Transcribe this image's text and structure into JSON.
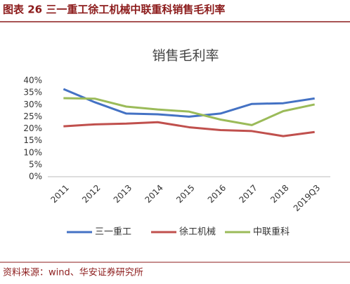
{
  "header": {
    "title": "图表 26 三一重工徐工机械中联重科销售毛利率"
  },
  "chart_data": {
    "type": "line",
    "title": "销售毛利率",
    "categories": [
      "2011",
      "2012",
      "2013",
      "2014",
      "2015",
      "2016",
      "2017",
      "2018",
      "2019Q3"
    ],
    "series": [
      {
        "name": "三一重工",
        "color": "#4472c4",
        "values": [
          36.5,
          31,
          26.3,
          26,
          25,
          26.3,
          30.3,
          30.6,
          32.6
        ]
      },
      {
        "name": "徐工机械",
        "color": "#c0504d",
        "values": [
          21,
          21.8,
          22.1,
          22.7,
          20.6,
          19.4,
          19,
          16.9,
          18.6
        ]
      },
      {
        "name": "中联重科",
        "color": "#9bbb59",
        "values": [
          32.7,
          32.5,
          29.2,
          28,
          27.1,
          23.8,
          21.5,
          27.3,
          30.1
        ]
      }
    ],
    "ylim": [
      0,
      40
    ],
    "yticks": [
      {
        "value": 0,
        "label": "0%"
      },
      {
        "value": 5,
        "label": "5%"
      },
      {
        "value": 10,
        "label": "10%"
      },
      {
        "value": 15,
        "label": "15%"
      },
      {
        "value": 20,
        "label": "20%"
      },
      {
        "value": 25,
        "label": "25%"
      },
      {
        "value": 30,
        "label": "30%"
      },
      {
        "value": 35,
        "label": "35%"
      },
      {
        "value": 40,
        "label": "40%"
      }
    ],
    "grid": false,
    "legend": "bottom"
  },
  "footer": {
    "source": "资料来源：wind、华安证券研究所"
  }
}
